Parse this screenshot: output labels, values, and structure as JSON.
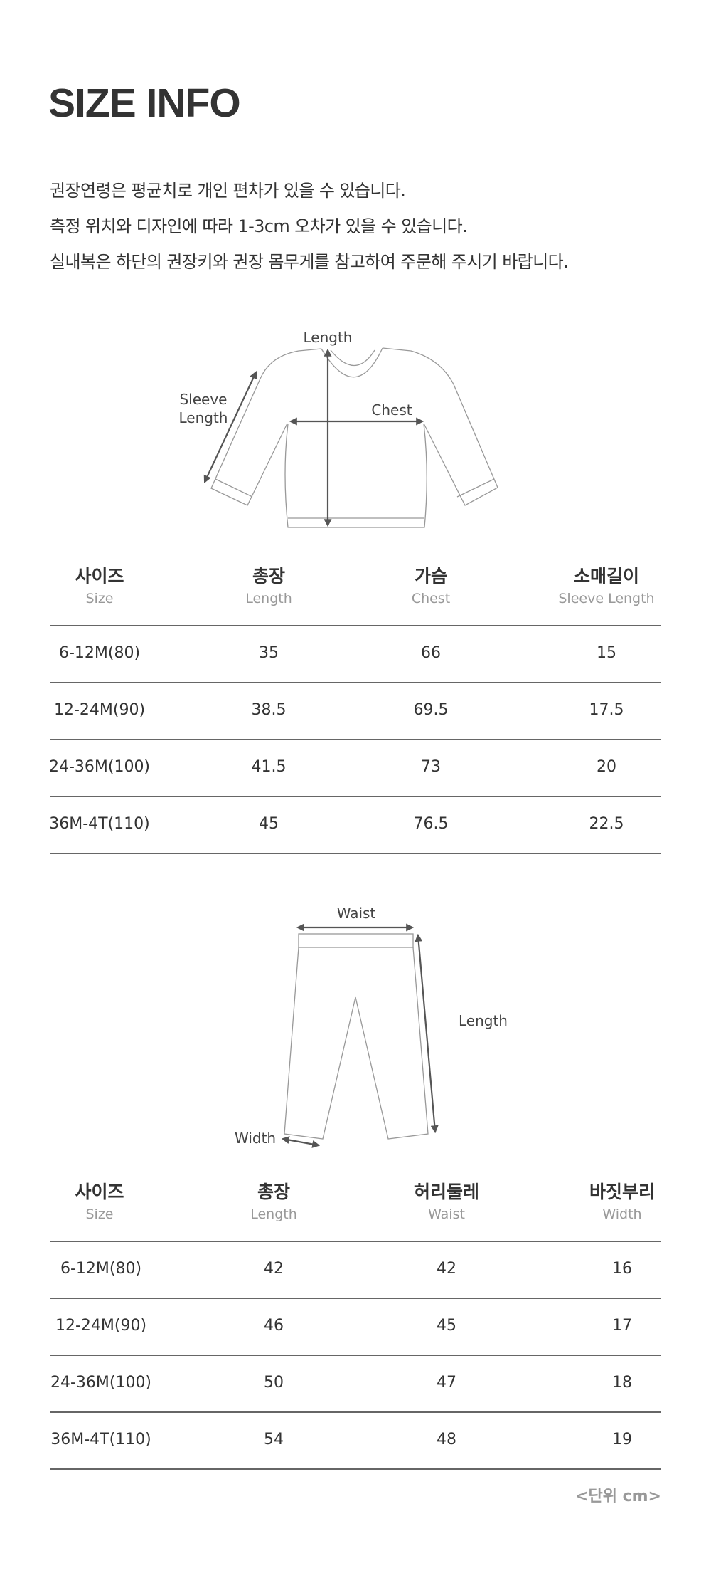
{
  "title": "SIZE INFO",
  "notes": [
    "권장연령은 평균치로 개인 편차가 있을 수 있습니다.",
    "측정 위치와 디자인에 따라 1-3cm 오차가 있을 수 있습니다.",
    "실내복은 하단의 권장키와 권장 몸무게를 참고하여 주문해 주시기 바랍니다."
  ],
  "top_diagram": {
    "length": "Length",
    "sleeve_line1": "Sleeve",
    "sleeve_line2": "Length",
    "chest": "Chest"
  },
  "top_table": {
    "headers": [
      {
        "ko": "사이즈",
        "en": "Size"
      },
      {
        "ko": "총장",
        "en": "Length"
      },
      {
        "ko": "가슴",
        "en": "Chest"
      },
      {
        "ko": "소매길이",
        "en": "Sleeve Length"
      }
    ],
    "rows": [
      [
        "6-12M(80)",
        "35",
        "66",
        "15"
      ],
      [
        "12-24M(90)",
        "38.5",
        "69.5",
        "17.5"
      ],
      [
        "24-36M(100)",
        "41.5",
        "73",
        "20"
      ],
      [
        "36M-4T(110)",
        "45",
        "76.5",
        "22.5"
      ]
    ]
  },
  "bottom_diagram": {
    "waist": "Waist",
    "length": "Length",
    "width": "Width"
  },
  "bottom_table": {
    "headers": [
      {
        "ko": "사이즈",
        "en": "Size"
      },
      {
        "ko": "총장",
        "en": "Length"
      },
      {
        "ko": "허리둘레",
        "en": "Waist"
      },
      {
        "ko": "바짓부리",
        "en": "Width"
      }
    ],
    "rows": [
      [
        "6-12M(80)",
        "42",
        "42",
        "16"
      ],
      [
        "12-24M(90)",
        "46",
        "45",
        "17"
      ],
      [
        "24-36M(100)",
        "50",
        "47",
        "18"
      ],
      [
        "36M-4T(110)",
        "54",
        "48",
        "19"
      ]
    ]
  },
  "unit": "<단위 cm>"
}
